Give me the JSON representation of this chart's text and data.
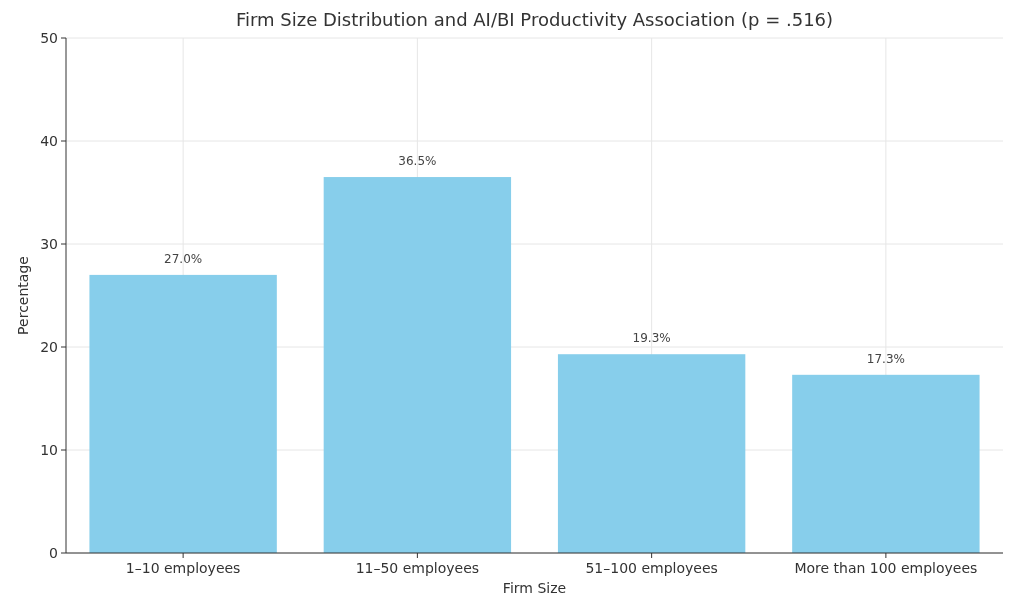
{
  "chart_data": {
    "type": "bar",
    "title": "Firm Size Distribution and AI/BI Productivity Association (p = .516)",
    "xlabel": "Firm Size",
    "ylabel": "Percentage",
    "categories": [
      "1–10 employees",
      "11–50 employees",
      "51–100 employees",
      "More than 100 employees"
    ],
    "values": [
      27.0,
      36.5,
      19.3,
      17.3
    ],
    "color": "#87ceeb",
    "value_labels": [
      "27.0%",
      "36.5%",
      "19.3%",
      "17.3%"
    ],
    "ylim": [
      0,
      50
    ],
    "yticks": [
      0,
      10,
      20,
      30,
      40,
      50
    ],
    "grid": true
  }
}
